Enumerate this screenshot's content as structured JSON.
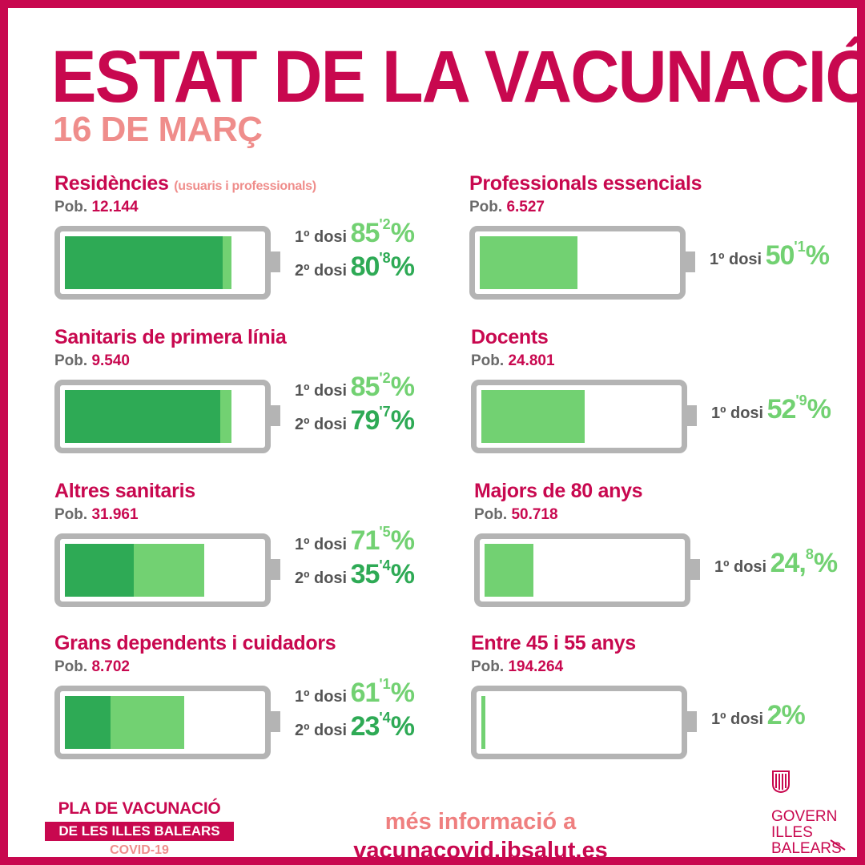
{
  "title": "ESTAT DE LA VACUNACIÓ",
  "date": "16 DE MARÇ",
  "pob_prefix": "Pob.",
  "dose_labels": {
    "first": "1º dosi",
    "second": "2º dosi"
  },
  "groups": [
    {
      "name": "Residències",
      "subtitle": "(usuaris i professionals)",
      "population": "12.144",
      "first_dose": {
        "int": "85",
        "dec": "'2",
        "pct": "%",
        "value": 85.2
      },
      "second_dose": {
        "int": "80",
        "dec": "'8",
        "pct": "%",
        "value": 80.8
      }
    },
    {
      "name": "Professionals essencials",
      "population": "6.527",
      "first_dose": {
        "int": "50",
        "dec": "'1",
        "pct": "%",
        "value": 50.1
      }
    },
    {
      "name": "Sanitaris de primera línia",
      "population": "9.540",
      "first_dose": {
        "int": "85",
        "dec": "'2",
        "pct": "%",
        "value": 85.2
      },
      "second_dose": {
        "int": "79",
        "dec": "'7",
        "pct": "%",
        "value": 79.7
      }
    },
    {
      "name": "Docents",
      "population": "24.801",
      "first_dose": {
        "int": "52",
        "dec": "'9",
        "pct": "%",
        "value": 52.9
      }
    },
    {
      "name": "Altres sanitaris",
      "population": "31.961",
      "first_dose": {
        "int": "71",
        "dec": "'5",
        "pct": "%",
        "value": 71.5
      },
      "second_dose": {
        "int": "35",
        "dec": "'4",
        "pct": "%",
        "value": 35.4
      }
    },
    {
      "name": "Majors de 80 anys",
      "population": "50.718",
      "first_dose": {
        "int": "24,",
        "dec": "8",
        "pct": "%",
        "value": 24.8
      }
    },
    {
      "name": "Grans dependents i cuidadors",
      "population": "8.702",
      "first_dose": {
        "int": "61",
        "dec": "'1",
        "pct": "%",
        "value": 61.1
      },
      "second_dose": {
        "int": "23",
        "dec": "'4",
        "pct": "%",
        "value": 23.4
      }
    },
    {
      "name": "Entre 45 i 55 anys",
      "population": "194.264",
      "first_dose": {
        "int": "2",
        "dec": "",
        "pct": "%",
        "value": 2
      }
    }
  ],
  "footer": {
    "plan_line1": "PLA DE VACUNACIÓ",
    "plan_line2": "DE LES ILLES BALEARS",
    "plan_line3": "COVID-19",
    "info_line1": "més informació a",
    "info_line2": "vacunacovid.ibsalut.es",
    "gov_line1": "GOVERN",
    "gov_line2": "ILLES",
    "gov_line3": "BALEARS"
  },
  "colors": {
    "brand": "#c8084f",
    "accent_pink": "#ef8d8b",
    "first_dose": "#72d172",
    "second_dose": "#2eaa55",
    "battery": "#b4b4b4"
  }
}
